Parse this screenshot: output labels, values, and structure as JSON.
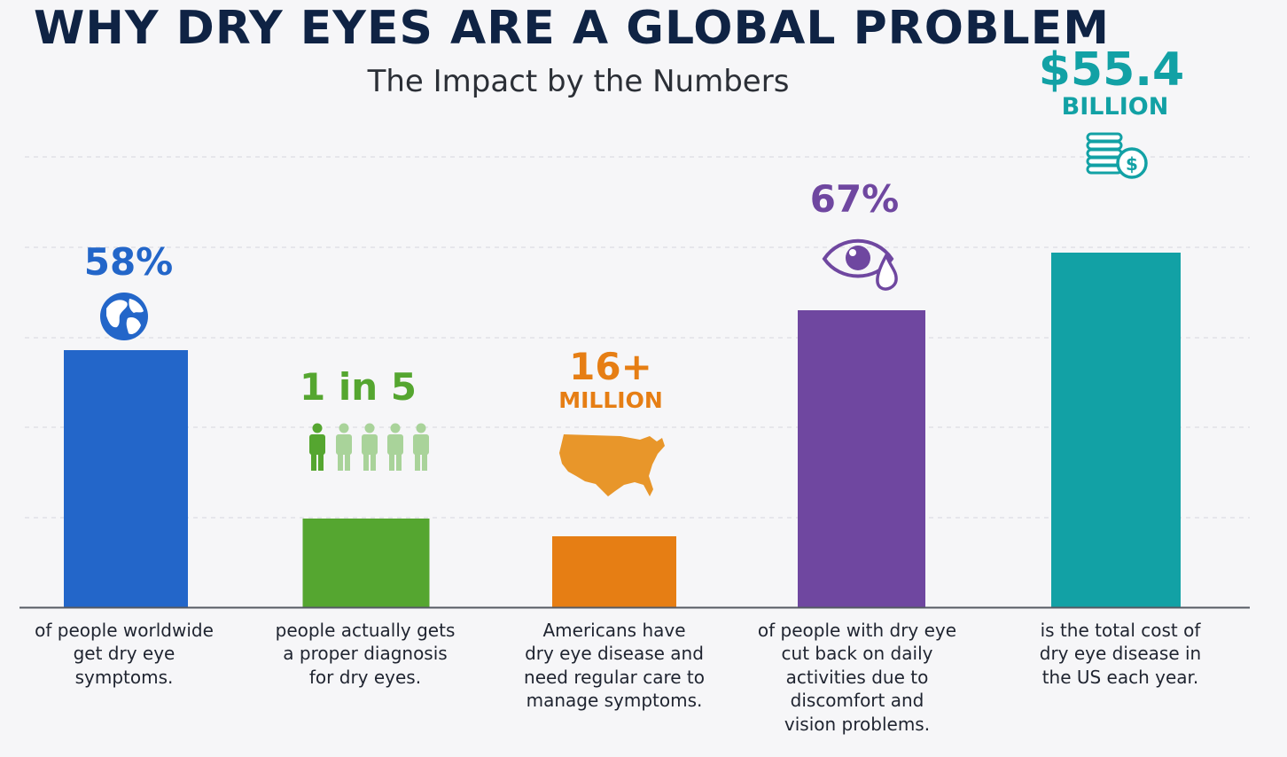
{
  "title": "WHY DRY EYES ARE A GLOBAL PROBLEM",
  "subtitle": "The Impact by the Numbers",
  "chart_data": {
    "type": "bar",
    "grid": true,
    "categories": [
      "58%",
      "1 in 5",
      "16+ MILLION",
      "67%",
      "$55.4 BILLION"
    ],
    "values": [
      58,
      20,
      16,
      67,
      80
    ],
    "ylim": [
      0,
      100
    ],
    "bars": [
      {
        "value": 58,
        "color": "#2366c9",
        "stat": "58%",
        "unit": "",
        "icon": "globe-icon",
        "description": [
          "of people worldwide",
          "get dry eye",
          "symptoms."
        ]
      },
      {
        "value": 20,
        "color": "#55a630",
        "stat": "1 in 5",
        "unit": "",
        "icon": "people-icon",
        "description": [
          "people actually gets",
          "a proper diagnosis",
          "for dry eyes."
        ]
      },
      {
        "value": 16,
        "color": "#e67e14",
        "stat": "16+",
        "unit": "MILLION",
        "icon": "usa-map-icon",
        "description": [
          "Americans have",
          "dry eye disease and",
          "need regular care to",
          "manage symptoms."
        ]
      },
      {
        "value": 67,
        "color": "#6f47a0",
        "stat": "67%",
        "unit": "",
        "icon": "tear-eye-icon",
        "description": [
          "of people with dry eye",
          "cut back on daily",
          "activities due to",
          "discomfort and",
          "vision problems."
        ]
      },
      {
        "value": 80,
        "color": "#12a1a5",
        "stat": "$55.4",
        "unit": "BILLION",
        "icon": "coins-icon",
        "description": [
          "is the total cost of",
          "dry eye disease in",
          "the US each year."
        ]
      }
    ]
  }
}
